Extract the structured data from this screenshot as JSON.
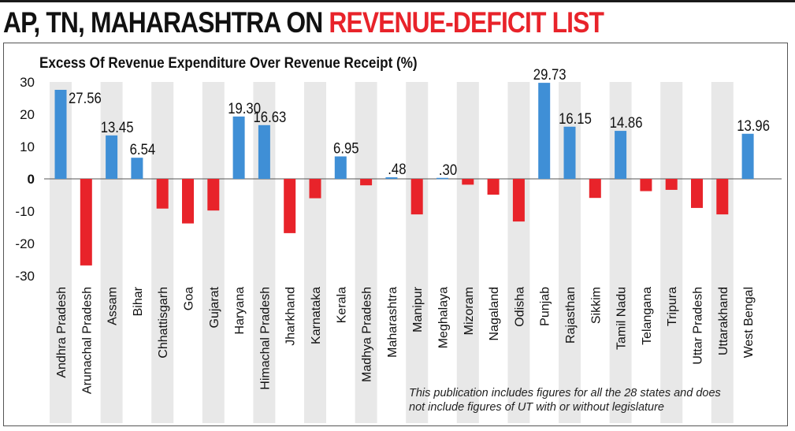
{
  "headline": {
    "part1": "AP, TN, MAHARASHTRA ON ",
    "part2": "REVENUE-DEFICIT LIST"
  },
  "colors": {
    "headline_black": "#111111",
    "headline_red": "#e8232a",
    "positive_bar": "#3f8fd6",
    "negative_bar": "#e8232a",
    "band": "#e8e8e8"
  },
  "chart_data": {
    "type": "bar",
    "title": "Excess Of Revenue Expenditure Over Revenue Receipt (%)",
    "xlabel": "",
    "ylabel": "",
    "ylim": [
      -30,
      30
    ],
    "yticks": [
      "30",
      "20",
      "10",
      "0",
      "-10",
      "-20",
      "-30"
    ],
    "ytick_values": [
      30,
      20,
      10,
      0,
      -10,
      -20,
      -30
    ],
    "grid": false,
    "alternating_bands": true,
    "categories": [
      "Andhra Pradesh",
      "Arunachal Pradesh",
      "Assam",
      "Bihar",
      "Chhattisgarh",
      "Goa",
      "Gujarat",
      "Haryana",
      "Himachal Pradesh",
      "Jharkhand",
      "Karnataka",
      "Kerala",
      "Madhya Pradesh",
      "Maharashtra",
      "Manipur",
      "Meghalaya",
      "Mizoram",
      "Nagaland",
      "Odisha",
      "Punjab",
      "Rajasthan",
      "Sikkim",
      "Tamil Nadu",
      "Telangana",
      "Tripura",
      "Uttar Pradesh",
      "Uttarakhand",
      "West Bengal"
    ],
    "values": [
      27.56,
      -26.8,
      13.45,
      6.54,
      -9.2,
      -13.8,
      -9.8,
      19.3,
      16.63,
      -16.8,
      -6.0,
      6.95,
      -2.0,
      0.48,
      -11.0,
      0.3,
      -1.8,
      -4.9,
      -13.2,
      29.73,
      16.15,
      -5.9,
      14.86,
      -3.8,
      -3.4,
      -9.0,
      -11.0,
      13.96
    ],
    "data_labels": [
      "27.56",
      "",
      "13.45",
      "6.54",
      "",
      "",
      "",
      "19.30",
      "16.63",
      "",
      "",
      "6.95",
      "",
      ".48",
      "",
      ".30",
      "",
      "",
      "",
      "29.73",
      "16.15",
      "",
      "14.86",
      "",
      "",
      "",
      "",
      "13.96"
    ]
  },
  "footnote": {
    "line1": "This publication includes figures for all the 28 states and does",
    "line2": "not include figures of UT with or without legislature"
  }
}
